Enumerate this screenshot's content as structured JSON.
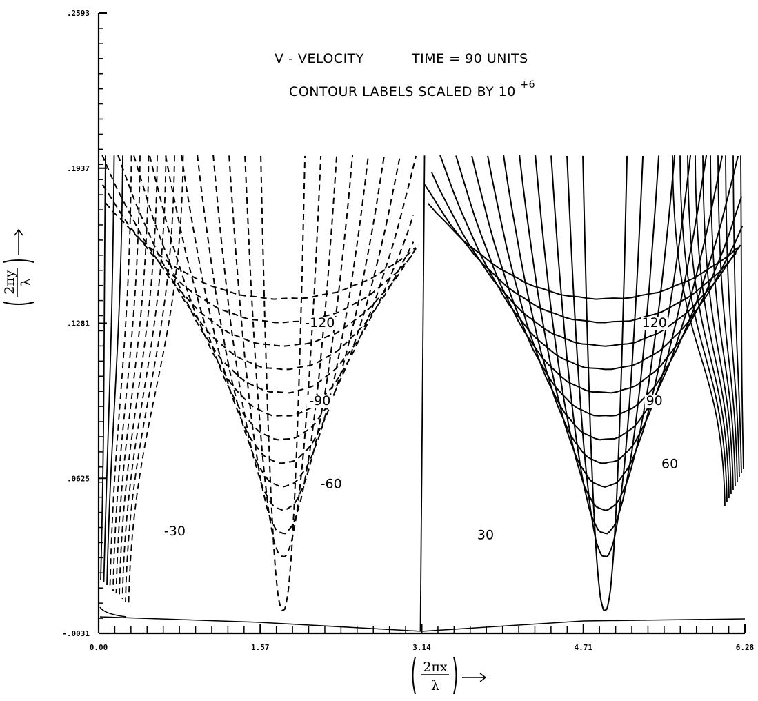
{
  "chart_data": {
    "type": "contour",
    "title": "V - VELOCITY",
    "time_label": "TIME = 90 UNITS",
    "subtitle_main": "CONTOUR LABELS SCALED BY 10",
    "subtitle_exp": "+6",
    "xlabel_num": "2πx",
    "xlabel_den": "λ",
    "ylabel_num": "2πy",
    "ylabel_den": "λ",
    "xlim": [
      0.0,
      6.28
    ],
    "ylim": [
      -0.0031,
      0.2593
    ],
    "x_ticks": [
      0.0,
      1.57,
      3.14,
      4.71,
      6.28
    ],
    "x_tick_labels": [
      "0.00",
      "1.57",
      "3.14",
      "4.71",
      "6.28"
    ],
    "y_ticks": [
      -0.0031,
      0.0625,
      0.1281,
      0.1937,
      0.2593
    ],
    "y_tick_labels": [
      "-.0031",
      ".0625",
      ".1281",
      ".1937",
      ".2593"
    ],
    "contour_labels": [
      {
        "text": "-120",
        "x": 2.15,
        "y": 0.1265
      },
      {
        "text": "-90",
        "x": 2.15,
        "y": 0.0935
      },
      {
        "text": "-60",
        "x": 2.26,
        "y": 0.0583
      },
      {
        "text": "-30",
        "x": 0.74,
        "y": 0.0383
      },
      {
        "text": "120",
        "x": 5.4,
        "y": 0.1265
      },
      {
        "text": "90",
        "x": 5.4,
        "y": 0.0935
      },
      {
        "text": "60",
        "x": 5.55,
        "y": 0.0668
      },
      {
        "text": "30",
        "x": 3.76,
        "y": 0.0367
      }
    ],
    "negative_contours": {
      "style": "dashed",
      "levels": [
        -10,
        -20,
        -30,
        -40,
        -50,
        -60,
        -70,
        -80,
        -90,
        -100,
        -110,
        -120,
        -130
      ],
      "center_x": 1.79,
      "labeled": [
        -30,
        -60,
        -90,
        -120
      ]
    },
    "positive_contours": {
      "style": "solid",
      "levels": [
        10,
        20,
        30,
        40,
        50,
        60,
        70,
        80,
        90,
        100,
        110,
        120,
        130
      ],
      "center_x": 4.92,
      "labeled": [
        30,
        60,
        90,
        120
      ]
    }
  }
}
